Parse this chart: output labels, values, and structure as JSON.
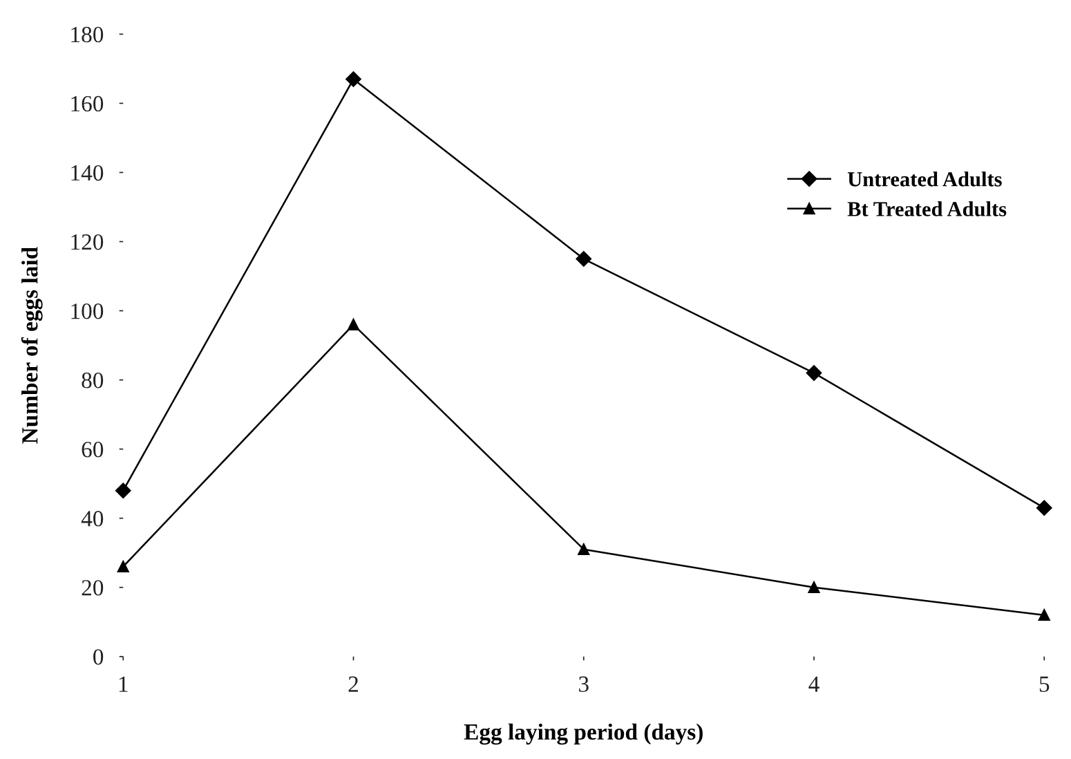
{
  "chart_data": {
    "type": "line",
    "xlabel": "Egg laying period (days)",
    "ylabel": "Number of eggs laid",
    "x": [
      1,
      2,
      3,
      4,
      5
    ],
    "series": [
      {
        "name": "Untreated Adults",
        "color": "#000000",
        "marker": "diamond",
        "values": [
          48,
          167,
          115,
          82,
          43
        ]
      },
      {
        "name": "Bt Treated Adults",
        "color": "#000000",
        "marker": "triangle",
        "values": [
          26,
          96,
          31,
          20,
          12
        ]
      }
    ],
    "xlim": [
      1,
      5
    ],
    "xticks": [
      1,
      2,
      3,
      4,
      5
    ],
    "ylim": [
      0,
      180
    ],
    "yticks": [
      0,
      20,
      40,
      60,
      80,
      100,
      120,
      140,
      160,
      180
    ],
    "grid": false,
    "legend": "right",
    "line_style": "solid"
  }
}
